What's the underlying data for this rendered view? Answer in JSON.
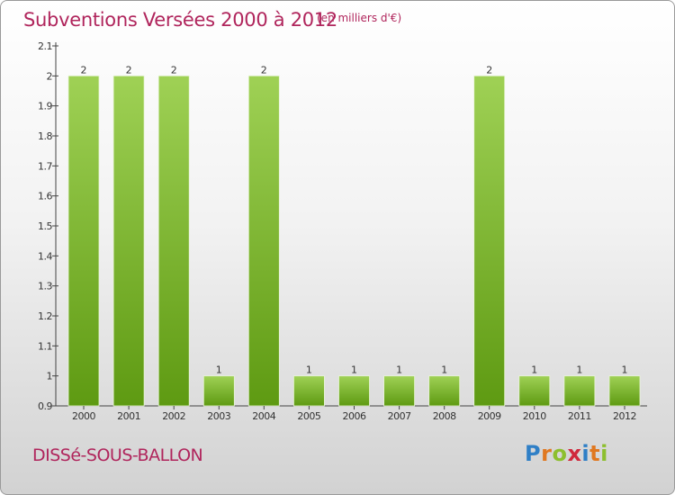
{
  "title": "Subventions Versées 2000 à 2012",
  "unit_note": "(en milliers d'€)",
  "commune": "DISSé-SOUS-BALLON",
  "logo": {
    "text": "Proxiti",
    "letters": [
      "P",
      "r",
      "o",
      "x",
      "i",
      "t",
      "i"
    ],
    "colors": [
      "#2f7fc6",
      "#e07820",
      "#8dbf2e",
      "#d0283c",
      "#2f7fc6",
      "#e07820",
      "#8dbf2e"
    ]
  },
  "colors": {
    "accent": "#b0255c",
    "bar_top": "#9fd155",
    "bar_bottom": "#5e9a12"
  },
  "chart_data": {
    "type": "bar",
    "categories": [
      "2000",
      "2001",
      "2002",
      "2003",
      "2004",
      "2005",
      "2006",
      "2007",
      "2008",
      "2009",
      "2010",
      "2011",
      "2012"
    ],
    "values": [
      2,
      2,
      2,
      1,
      2,
      1,
      1,
      1,
      1,
      2,
      1,
      1,
      1
    ],
    "data_labels": [
      "2",
      "2",
      "2",
      "1",
      "2",
      "1",
      "1",
      "1",
      "1",
      "2",
      "1",
      "1",
      "1"
    ],
    "ylim": [
      0.9,
      2.1
    ],
    "yticks": [
      0.9,
      1,
      1.1,
      1.2,
      1.3,
      1.4,
      1.5,
      1.6,
      1.7,
      1.8,
      1.9,
      2,
      2.1
    ],
    "ytick_labels": [
      "0.9",
      "1",
      "1.1",
      "1.2",
      "1.3",
      "1.4",
      "1.5",
      "1.6",
      "1.7",
      "1.8",
      "1.9",
      "2",
      "2.1"
    ],
    "grid": false,
    "legend": "none"
  }
}
